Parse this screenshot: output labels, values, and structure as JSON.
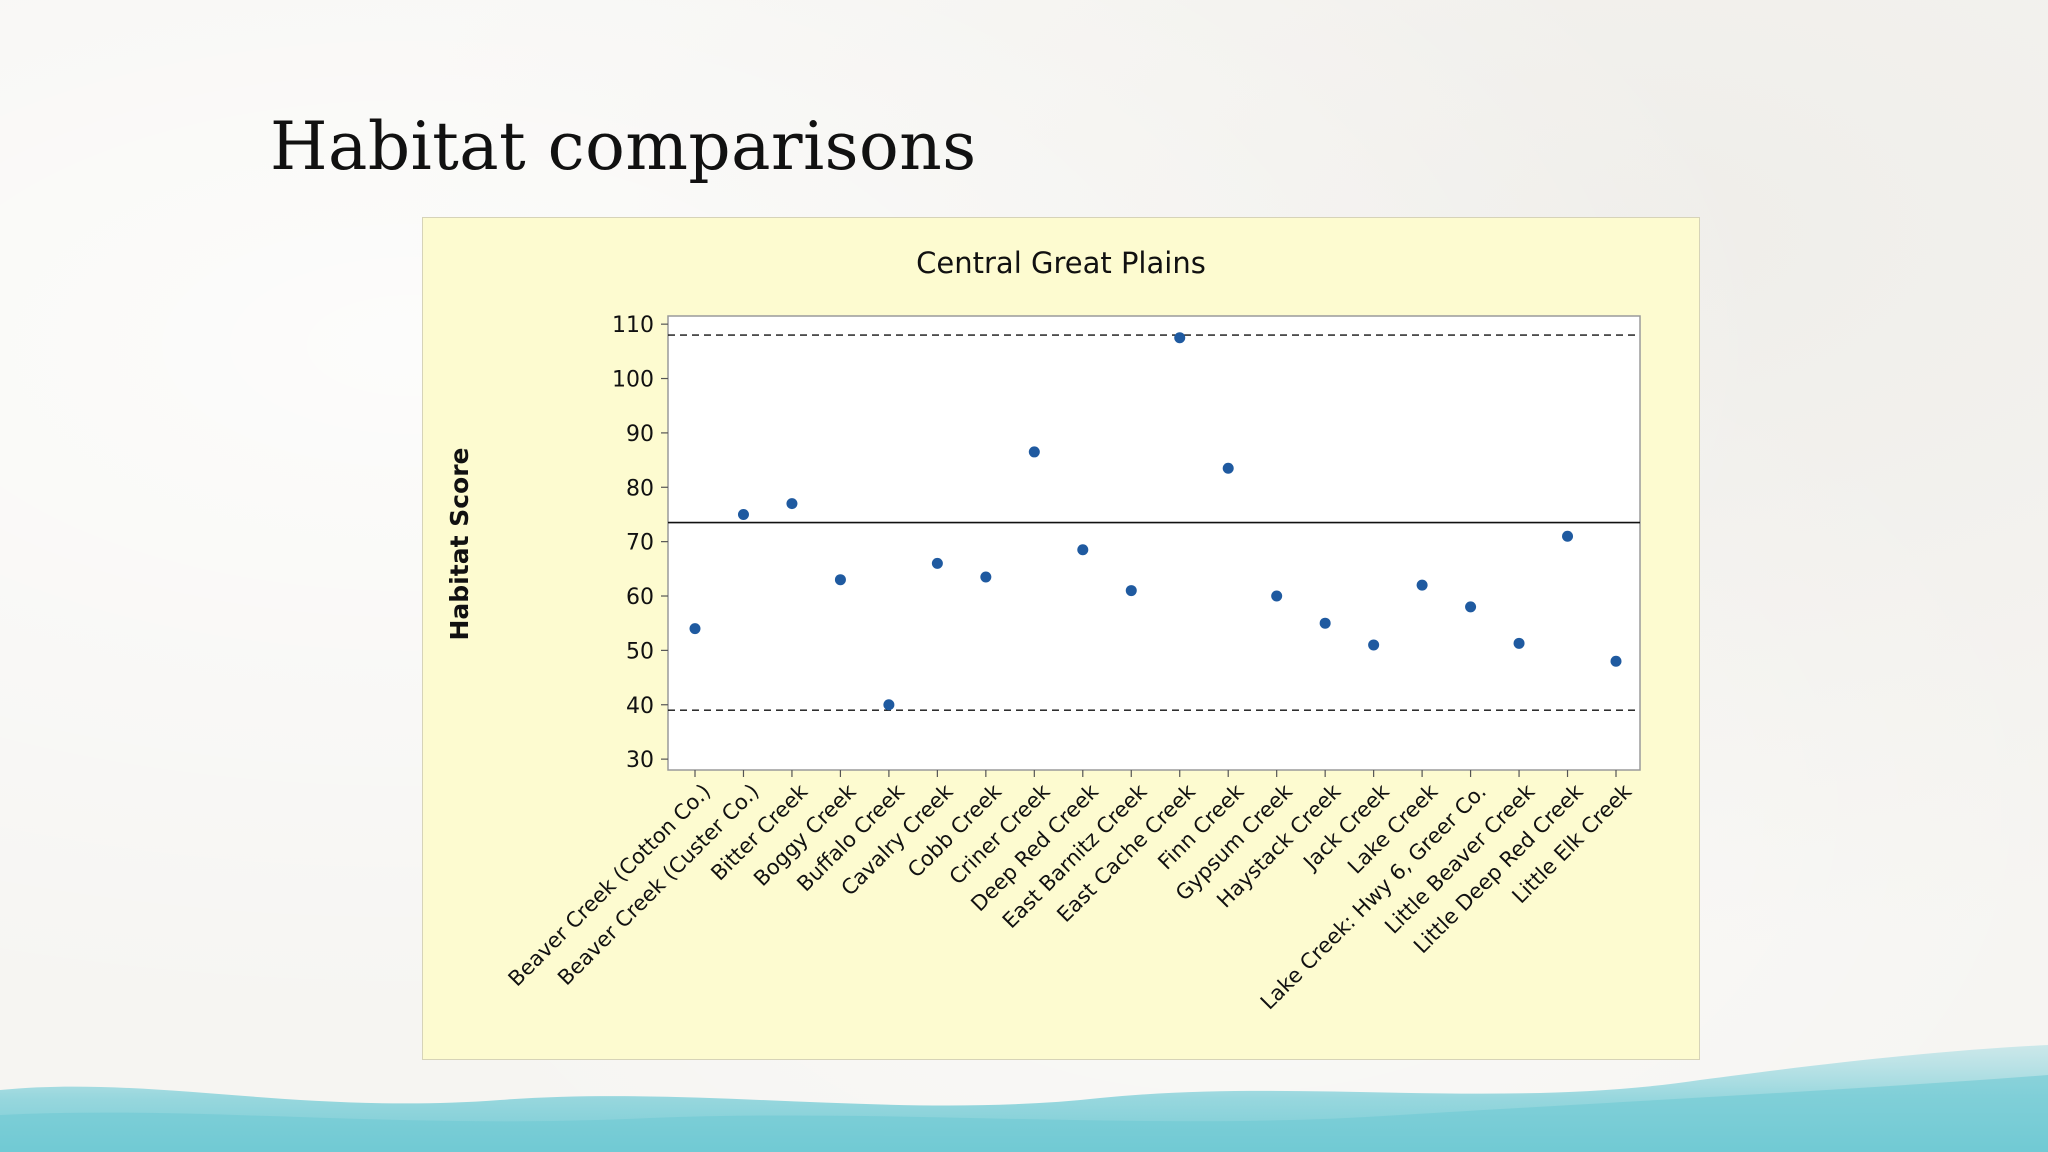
{
  "slide": {
    "title": "Habitat comparisons"
  },
  "colors": {
    "plot_background": "#ffffff",
    "chart_background": "#fdfbd0",
    "marker": "#1f5aa0",
    "text": "#111111"
  },
  "chart_data": {
    "type": "scatter",
    "title": "Central Great Plains",
    "xlabel": "",
    "ylabel": "Habitat Score",
    "ylim": [
      28,
      111.5
    ],
    "yticks": [
      30,
      40,
      50,
      60,
      70,
      80,
      90,
      100,
      110
    ],
    "grid": false,
    "categories": [
      "Beaver Creek (Cotton Co.)",
      "Beaver Creek (Custer Co.)",
      "Bitter Creek",
      "Boggy Creek",
      "Buffalo Creek",
      "Cavalry Creek",
      "Cobb Creek",
      "Criner Creek",
      "Deep Red Creek",
      "East Barnitz Creek",
      "East Cache Creek",
      "Finn Creek",
      "Gypsum Creek",
      "Haystack Creek",
      "Jack Creek",
      "Lake Creek",
      "Lake Creek: Hwy 6, Greer Co.",
      "Little Beaver Creek",
      "Little Deep Red Creek",
      "Little Elk Creek"
    ],
    "values": [
      54,
      75,
      77,
      63,
      40,
      66,
      63.5,
      86.5,
      68.5,
      61,
      107.5,
      83.5,
      60,
      55,
      51,
      62,
      58,
      51.3,
      71,
      48
    ],
    "reference_lines": [
      {
        "name": "mean",
        "value": 73.5,
        "style": "solid"
      },
      {
        "name": "upper",
        "value": 108,
        "style": "dashed"
      },
      {
        "name": "lower",
        "value": 39,
        "style": "dashed"
      }
    ]
  }
}
